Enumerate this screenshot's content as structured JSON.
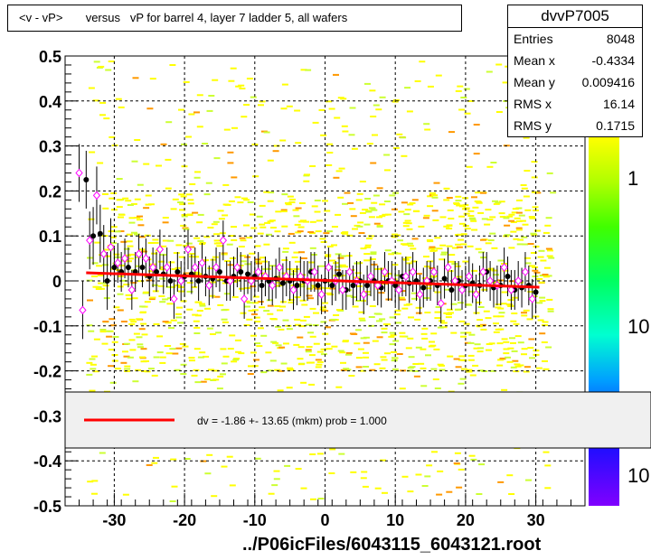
{
  "header": {
    "title": "<v - vP>       versus   vP for barrel 4, layer 7 ladder 5, all wafers"
  },
  "stats": {
    "name": "dvvP7005",
    "rows": [
      {
        "label": "Entries",
        "value": "8048"
      },
      {
        "label": "Mean x",
        "value": "-0.4334"
      },
      {
        "label": "Mean y",
        "value": "0.009416"
      },
      {
        "label": "RMS x",
        "value": "16.14"
      },
      {
        "label": "RMS y",
        "value": "0.1715"
      }
    ]
  },
  "footer": {
    "file_label": "../P06icFiles/6043115_6043121.root"
  },
  "legend": {
    "fit_text": "dv =   -1.86 +- 13.65 (mkm) prob = 1.000"
  },
  "colors": {
    "fit_line": "#ff0000",
    "open_marker": "#ff00ff",
    "filled_marker": "#000000",
    "scatter_main": "#ffff00",
    "scatter_alt": "#ccff33",
    "scatter_hot": "#ff9900"
  },
  "chart_data": {
    "type": "scatter",
    "xlim": [
      -37,
      37
    ],
    "ylim": [
      -0.5,
      0.5
    ],
    "x_ticks": [
      -30,
      -20,
      -10,
      0,
      10,
      20,
      30
    ],
    "x_tick_labels": [
      "-30",
      "-20",
      "-10",
      "0",
      "10",
      "20",
      "30"
    ],
    "y_ticks": [
      -0.5,
      -0.4,
      -0.3,
      -0.2,
      -0.1,
      0,
      0.1,
      0.2,
      0.3,
      0.4,
      0.5
    ],
    "y_tick_labels": [
      "-0.5",
      "-0.4",
      "-0.3",
      "-0.2",
      "-0.1",
      "0",
      "0.1",
      "0.2",
      "0.3",
      "0.4",
      "0.5"
    ],
    "grid": true,
    "fit": {
      "x": [
        -34,
        30.5
      ],
      "y": [
        0.018,
        -0.014
      ]
    },
    "series": [
      {
        "marker": "filled-circle",
        "x": [
          -34,
          -33,
          -32,
          -31,
          -30,
          -29,
          -28,
          -27,
          -26,
          -25,
          -24,
          -23,
          -22,
          -21,
          -20,
          -19,
          -18,
          -17,
          -16,
          -15,
          -14,
          -13,
          -12,
          -11,
          -10,
          -9,
          -8,
          -7,
          -6,
          -5,
          -4,
          -3,
          -2,
          -1,
          0,
          1,
          2,
          3,
          4,
          5,
          6,
          7,
          8,
          9,
          10,
          11,
          12,
          13,
          14,
          15,
          16,
          17,
          18,
          19,
          20,
          21,
          22,
          23,
          24,
          25,
          26,
          27,
          28,
          29,
          30
        ],
        "y": [
          0.225,
          0.1,
          0.105,
          0.0,
          0.03,
          0.02,
          0.03,
          0.02,
          0.03,
          0.01,
          0.02,
          0.015,
          0.0,
          0.02,
          0.01,
          0.015,
          0.0,
          0.01,
          0.005,
          0.02,
          0.0,
          0.01,
          0.02,
          0.015,
          0.01,
          -0.01,
          0.0,
          0.005,
          -0.005,
          0.0,
          -0.01,
          0.0,
          0.02,
          -0.01,
          0.0,
          -0.01,
          0.015,
          -0.02,
          -0.01,
          0.0,
          -0.01,
          0.0,
          -0.015,
          0.0,
          -0.01,
          0.01,
          -0.005,
          0.0,
          -0.015,
          0.0,
          -0.01,
          0.005,
          -0.02,
          0.0,
          -0.01,
          -0.005,
          -0.01,
          0.02,
          -0.015,
          -0.01,
          0.01,
          -0.02,
          -0.015,
          -0.01,
          -0.025
        ]
      },
      {
        "marker": "open-diamond",
        "x": [
          -35,
          -34.5,
          -33.5,
          -32.5,
          -31.5,
          -30.5,
          -29.5,
          -28.5,
          -27.5,
          -26.5,
          -25.5,
          -24.5,
          -23.5,
          -22.5,
          -21.5,
          -20.5,
          -19.5,
          -18.5,
          -17.5,
          -16.5,
          -15.5,
          -14.5,
          -13.5,
          -12.5,
          -11.5,
          -10.5,
          -9.5,
          -8.5,
          -7.5,
          -6.5,
          -5.5,
          -4.5,
          -3.5,
          -2.5,
          -1.5,
          -0.5,
          0.5,
          1.5,
          2.5,
          3.5,
          4.5,
          5.5,
          6.5,
          7.5,
          8.5,
          9.5,
          10.5,
          11.5,
          12.5,
          13.5,
          14.5,
          15.5,
          16.5,
          17.5,
          18.5,
          19.5,
          20.5,
          21.5,
          22.5,
          23.5,
          24.5,
          25.5,
          26.5,
          27.5,
          28.5,
          29.5
        ],
        "y": [
          0.24,
          -0.065,
          0.09,
          0.19,
          0.06,
          0.075,
          0.04,
          0.05,
          -0.02,
          0.06,
          0.05,
          0.03,
          0.07,
          0.03,
          -0.04,
          0.0,
          0.07,
          0.03,
          0.04,
          -0.01,
          0.03,
          0.09,
          0.0,
          0.03,
          -0.04,
          0.0,
          0.02,
          0.01,
          -0.01,
          0.03,
          0.01,
          -0.02,
          0.01,
          0.0,
          0.02,
          -0.03,
          0.03,
          0.0,
          -0.02,
          0.02,
          0.0,
          -0.03,
          0.01,
          -0.01,
          0.02,
          0.0,
          -0.02,
          0.01,
          0.02,
          -0.03,
          0.0,
          0.02,
          -0.05,
          0.03,
          0.0,
          -0.02,
          0.01,
          -0.03,
          0.02,
          0.0,
          -0.01,
          0.03,
          -0.02,
          0.0,
          0.02,
          -0.04
        ]
      }
    ]
  }
}
